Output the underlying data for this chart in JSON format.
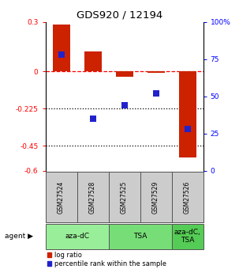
{
  "title": "GDS920 / 12194",
  "samples": [
    "GSM27524",
    "GSM27528",
    "GSM27525",
    "GSM27529",
    "GSM27526"
  ],
  "log_ratios": [
    0.285,
    0.12,
    -0.03,
    -0.01,
    -0.52
  ],
  "percentile_ranks": [
    78,
    35,
    44,
    52,
    28
  ],
  "agent_groups": [
    {
      "label": "aza-dC",
      "start": 0,
      "end": 2,
      "color": "#99ee99"
    },
    {
      "label": "TSA",
      "start": 2,
      "end": 4,
      "color": "#77dd77"
    },
    {
      "label": "aza-dC,\nTSA",
      "start": 4,
      "end": 5,
      "color": "#55cc55"
    }
  ],
  "bar_color": "#cc2200",
  "dot_color": "#2222cc",
  "ylim_left": [
    -0.6,
    0.3
  ],
  "ylim_right": [
    0,
    100
  ],
  "yticks_left": [
    0.3,
    0.0,
    -0.225,
    -0.45,
    -0.6
  ],
  "ytick_labels_left": [
    "0.3",
    "0",
    "-0.225",
    "-0.45",
    "-0.6"
  ],
  "yticks_right": [
    100,
    75,
    50,
    25,
    0
  ],
  "hlines": [
    0.0,
    -0.225,
    -0.45
  ],
  "hline_styles": [
    "dashed",
    "dotted",
    "dotted"
  ],
  "hline_colors": [
    "red",
    "black",
    "black"
  ],
  "sample_box_color": "#cccccc",
  "bar_width": 0.55,
  "dot_size": 28,
  "legend_items": [
    "log ratio",
    "percentile rank within the sample"
  ]
}
